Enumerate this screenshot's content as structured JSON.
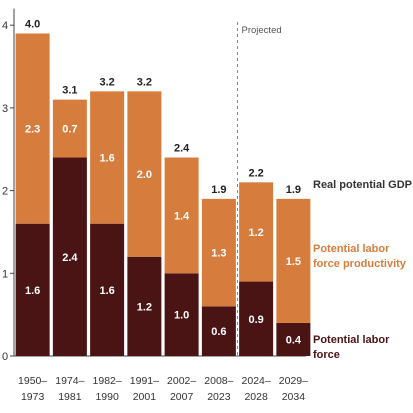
{
  "colors": {
    "labor_force": "#4a1414",
    "productivity": "#d67d3e",
    "gdp_label": "#333333",
    "axis": "#444444",
    "projection_line": "#888888"
  },
  "chart_data": {
    "type": "bar",
    "stacked": true,
    "categories": [
      [
        "1950–",
        "1973"
      ],
      [
        "1974–",
        "1981"
      ],
      [
        "1982–",
        "1990"
      ],
      [
        "1991–",
        "2001"
      ],
      [
        "2002–",
        "2007"
      ],
      [
        "2008–",
        "2023"
      ],
      [
        "2024–",
        "2028"
      ],
      [
        "2029–",
        "2034"
      ]
    ],
    "series": [
      {
        "name": "Potential labor force",
        "values": [
          1.6,
          2.4,
          1.6,
          1.2,
          1.0,
          0.6,
          0.9,
          0.4
        ]
      },
      {
        "name": "Potential labor force productivity",
        "values": [
          2.3,
          0.7,
          1.6,
          2.0,
          1.4,
          1.3,
          1.2,
          1.5
        ]
      }
    ],
    "totals": {
      "name": "Real potential GDP",
      "values": [
        4.0,
        3.1,
        3.2,
        3.2,
        2.4,
        1.9,
        2.2,
        1.9
      ]
    },
    "yticks": [
      0,
      1,
      2,
      3,
      4
    ],
    "ylim": [
      0,
      4.2
    ],
    "annotation": "Projected",
    "projection_starts_at_category": 6,
    "legend_placement": "right"
  }
}
